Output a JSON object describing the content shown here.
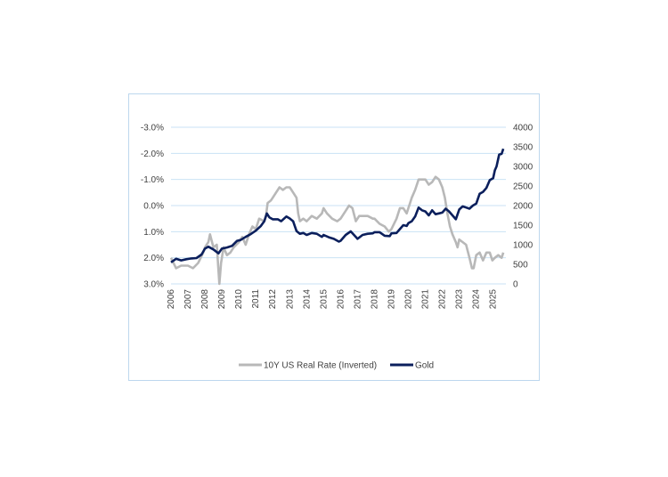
{
  "colors": {
    "real_rate": "#b8b8b8",
    "gold": "#0b1f5c",
    "grid": "#c9e2f5",
    "frame": "#bdd7ee"
  },
  "chart_data": {
    "type": "line",
    "title": "",
    "grid": true,
    "legend_position": "bottom",
    "x_tick_labels": [
      "2006",
      "2007",
      "2008",
      "2009",
      "2010",
      "2011",
      "2012",
      "2013",
      "2014",
      "2015",
      "2016",
      "2017",
      "2018",
      "2019",
      "2020",
      "2021",
      "2022",
      "2023",
      "2024",
      "2025"
    ],
    "y_left": {
      "label": "",
      "reversed": true,
      "range": [
        -3.0,
        3.0
      ],
      "ticks": [
        -3.0,
        -2.0,
        -1.0,
        0.0,
        1.0,
        2.0,
        3.0
      ],
      "tick_labels": [
        "-3.0%",
        "-2.0%",
        "-1.0%",
        "0.0%",
        "1.0%",
        "2.0%",
        "3.0%"
      ]
    },
    "y_right": {
      "label": "",
      "range": [
        0,
        4000
      ],
      "ticks": [
        0,
        500,
        1000,
        1500,
        2000,
        2500,
        3000,
        3500,
        4000
      ],
      "tick_labels": [
        "0",
        "500",
        "1000",
        "1500",
        "2000",
        "2500",
        "3000",
        "3500",
        "4000"
      ]
    },
    "series": [
      {
        "name": "10Y US Real Rate (Inverted)",
        "axis": "left",
        "points": [
          [
            2006.0,
            2.0
          ],
          [
            2006.3,
            2.4
          ],
          [
            2006.6,
            2.3
          ],
          [
            2007.0,
            2.3
          ],
          [
            2007.3,
            2.4
          ],
          [
            2007.6,
            2.2
          ],
          [
            2007.9,
            1.8
          ],
          [
            2008.0,
            1.6
          ],
          [
            2008.2,
            1.4
          ],
          [
            2008.3,
            1.1
          ],
          [
            2008.5,
            1.6
          ],
          [
            2008.7,
            1.5
          ],
          [
            2008.8,
            2.5
          ],
          [
            2008.85,
            3.0
          ],
          [
            2008.95,
            2.2
          ],
          [
            2009.1,
            1.6
          ],
          [
            2009.3,
            1.9
          ],
          [
            2009.5,
            1.8
          ],
          [
            2009.7,
            1.6
          ],
          [
            2010.0,
            1.4
          ],
          [
            2010.2,
            1.2
          ],
          [
            2010.4,
            1.5
          ],
          [
            2010.6,
            1.1
          ],
          [
            2010.8,
            0.8
          ],
          [
            2011.0,
            0.9
          ],
          [
            2011.2,
            0.5
          ],
          [
            2011.5,
            0.6
          ],
          [
            2011.6,
            0.4
          ],
          [
            2011.7,
            -0.1
          ],
          [
            2011.9,
            -0.2
          ],
          [
            2012.0,
            -0.3
          ],
          [
            2012.2,
            -0.5
          ],
          [
            2012.4,
            -0.7
          ],
          [
            2012.6,
            -0.6
          ],
          [
            2012.8,
            -0.7
          ],
          [
            2013.0,
            -0.7
          ],
          [
            2013.2,
            -0.5
          ],
          [
            2013.4,
            -0.3
          ],
          [
            2013.5,
            0.3
          ],
          [
            2013.6,
            0.6
          ],
          [
            2013.8,
            0.5
          ],
          [
            2014.0,
            0.6
          ],
          [
            2014.3,
            0.4
          ],
          [
            2014.6,
            0.5
          ],
          [
            2014.9,
            0.3
          ],
          [
            2015.0,
            0.1
          ],
          [
            2015.2,
            0.3
          ],
          [
            2015.5,
            0.5
          ],
          [
            2015.8,
            0.6
          ],
          [
            2016.0,
            0.5
          ],
          [
            2016.3,
            0.2
          ],
          [
            2016.5,
            0.0
          ],
          [
            2016.7,
            0.1
          ],
          [
            2016.9,
            0.6
          ],
          [
            2017.1,
            0.4
          ],
          [
            2017.3,
            0.4
          ],
          [
            2017.6,
            0.4
          ],
          [
            2017.9,
            0.5
          ],
          [
            2018.0,
            0.5
          ],
          [
            2018.3,
            0.7
          ],
          [
            2018.6,
            0.8
          ],
          [
            2018.85,
            1.0
          ],
          [
            2019.0,
            0.9
          ],
          [
            2019.3,
            0.5
          ],
          [
            2019.5,
            0.1
          ],
          [
            2019.7,
            0.1
          ],
          [
            2019.9,
            0.3
          ],
          [
            2020.0,
            0.1
          ],
          [
            2020.1,
            -0.1
          ],
          [
            2020.2,
            -0.3
          ],
          [
            2020.4,
            -0.6
          ],
          [
            2020.6,
            -1.0
          ],
          [
            2020.8,
            -1.0
          ],
          [
            2021.0,
            -1.0
          ],
          [
            2021.2,
            -0.8
          ],
          [
            2021.4,
            -0.9
          ],
          [
            2021.6,
            -1.1
          ],
          [
            2021.8,
            -1.0
          ],
          [
            2022.0,
            -0.7
          ],
          [
            2022.15,
            -0.3
          ],
          [
            2022.3,
            0.3
          ],
          [
            2022.45,
            0.8
          ],
          [
            2022.6,
            1.1
          ],
          [
            2022.8,
            1.4
          ],
          [
            2022.9,
            1.6
          ],
          [
            2023.0,
            1.3
          ],
          [
            2023.2,
            1.4
          ],
          [
            2023.4,
            1.5
          ],
          [
            2023.6,
            2.0
          ],
          [
            2023.75,
            2.4
          ],
          [
            2023.85,
            2.4
          ],
          [
            2024.0,
            1.9
          ],
          [
            2024.2,
            1.8
          ],
          [
            2024.4,
            2.1
          ],
          [
            2024.6,
            1.8
          ],
          [
            2024.8,
            1.8
          ],
          [
            2024.95,
            2.1
          ],
          [
            2025.1,
            2.0
          ],
          [
            2025.3,
            1.9
          ],
          [
            2025.5,
            2.0
          ],
          [
            2025.6,
            1.8
          ]
        ]
      },
      {
        "name": "Gold",
        "axis": "right",
        "points": [
          [
            2006.0,
            550
          ],
          [
            2006.3,
            640
          ],
          [
            2006.6,
            600
          ],
          [
            2006.9,
            630
          ],
          [
            2007.2,
            650
          ],
          [
            2007.5,
            660
          ],
          [
            2007.8,
            750
          ],
          [
            2008.0,
            900
          ],
          [
            2008.2,
            950
          ],
          [
            2008.5,
            880
          ],
          [
            2008.8,
            780
          ],
          [
            2009.0,
            900
          ],
          [
            2009.3,
            930
          ],
          [
            2009.6,
            970
          ],
          [
            2009.9,
            1100
          ],
          [
            2010.1,
            1120
          ],
          [
            2010.4,
            1200
          ],
          [
            2010.7,
            1270
          ],
          [
            2011.0,
            1360
          ],
          [
            2011.3,
            1480
          ],
          [
            2011.5,
            1600
          ],
          [
            2011.65,
            1800
          ],
          [
            2011.8,
            1700
          ],
          [
            2012.0,
            1650
          ],
          [
            2012.3,
            1650
          ],
          [
            2012.5,
            1600
          ],
          [
            2012.8,
            1720
          ],
          [
            2013.0,
            1670
          ],
          [
            2013.2,
            1600
          ],
          [
            2013.4,
            1350
          ],
          [
            2013.6,
            1280
          ],
          [
            2013.8,
            1300
          ],
          [
            2014.0,
            1250
          ],
          [
            2014.3,
            1300
          ],
          [
            2014.6,
            1280
          ],
          [
            2014.9,
            1200
          ],
          [
            2015.0,
            1250
          ],
          [
            2015.3,
            1190
          ],
          [
            2015.6,
            1150
          ],
          [
            2015.9,
            1080
          ],
          [
            2016.0,
            1100
          ],
          [
            2016.3,
            1250
          ],
          [
            2016.6,
            1340
          ],
          [
            2016.9,
            1200
          ],
          [
            2017.0,
            1150
          ],
          [
            2017.3,
            1250
          ],
          [
            2017.6,
            1280
          ],
          [
            2017.9,
            1290
          ],
          [
            2018.0,
            1320
          ],
          [
            2018.3,
            1320
          ],
          [
            2018.6,
            1230
          ],
          [
            2018.9,
            1220
          ],
          [
            2019.0,
            1290
          ],
          [
            2019.3,
            1300
          ],
          [
            2019.5,
            1400
          ],
          [
            2019.7,
            1500
          ],
          [
            2019.9,
            1480
          ],
          [
            2020.0,
            1550
          ],
          [
            2020.2,
            1600
          ],
          [
            2020.4,
            1720
          ],
          [
            2020.6,
            1950
          ],
          [
            2020.8,
            1880
          ],
          [
            2021.0,
            1850
          ],
          [
            2021.2,
            1750
          ],
          [
            2021.4,
            1880
          ],
          [
            2021.6,
            1780
          ],
          [
            2021.8,
            1800
          ],
          [
            2022.0,
            1820
          ],
          [
            2022.2,
            1920
          ],
          [
            2022.4,
            1850
          ],
          [
            2022.6,
            1750
          ],
          [
            2022.8,
            1650
          ],
          [
            2023.0,
            1900
          ],
          [
            2023.2,
            1980
          ],
          [
            2023.4,
            1950
          ],
          [
            2023.6,
            1920
          ],
          [
            2023.8,
            2000
          ],
          [
            2024.0,
            2050
          ],
          [
            2024.2,
            2300
          ],
          [
            2024.4,
            2350
          ],
          [
            2024.6,
            2450
          ],
          [
            2024.8,
            2650
          ],
          [
            2025.0,
            2700
          ],
          [
            2025.1,
            2900
          ],
          [
            2025.2,
            3000
          ],
          [
            2025.35,
            3300
          ],
          [
            2025.5,
            3320
          ],
          [
            2025.6,
            3450
          ]
        ]
      }
    ]
  }
}
